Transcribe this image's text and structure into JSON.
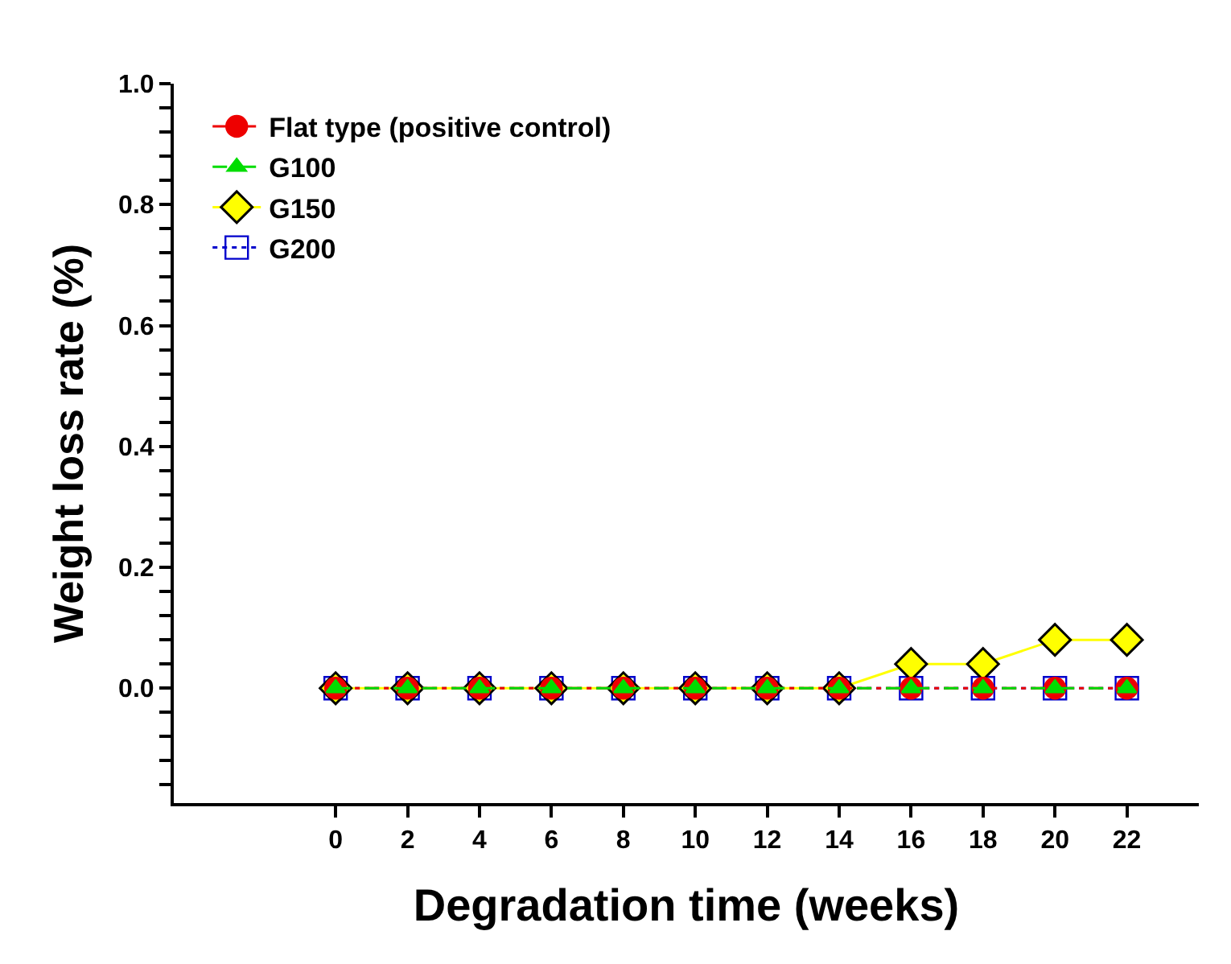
{
  "chart_data": {
    "type": "line",
    "xlabel": "Degradation time (weeks)",
    "ylabel": "Weight loss rate (%)",
    "x": [
      0,
      2,
      4,
      6,
      8,
      10,
      12,
      14,
      16,
      18,
      20,
      22
    ],
    "series": [
      {
        "name": "Flat type (positive control)",
        "color": "#ee0000",
        "marker": "circle",
        "line_style": "dashdot",
        "values": [
          0,
          0,
          0,
          0,
          0,
          0,
          0,
          0,
          0,
          0,
          0,
          0
        ]
      },
      {
        "name": "G100",
        "color": "#00dd00",
        "marker": "triangle",
        "line_style": "dashed",
        "values": [
          0,
          0,
          0,
          0,
          0,
          0,
          0,
          0,
          0,
          0,
          0,
          0
        ]
      },
      {
        "name": "G150",
        "color": "#ffff00",
        "marker": "diamond",
        "line_style": "solid",
        "values": [
          0,
          0,
          0,
          0,
          0,
          0,
          0,
          0,
          0.04,
          0.04,
          0.08,
          0.08
        ]
      },
      {
        "name": "G200",
        "color": "#0000cc",
        "marker": "square-open",
        "line_style": "dotted",
        "values": [
          0,
          0,
          0,
          0,
          0,
          0,
          0,
          0,
          0,
          0,
          0,
          0
        ]
      }
    ],
    "xlim": [
      -4.5,
      24
    ],
    "xticks": [
      0,
      2,
      4,
      6,
      8,
      10,
      12,
      14,
      16,
      18,
      20,
      22
    ],
    "ylim": [
      -0.19,
      1.0
    ],
    "yticks": [
      {
        "value": -0.16,
        "label": null
      },
      {
        "value": -0.12,
        "label": null
      },
      {
        "value": -0.08,
        "label": null
      },
      {
        "value": -0.04,
        "label": null
      },
      {
        "value": 0,
        "label": "0.0"
      },
      {
        "value": 0.04,
        "label": null
      },
      {
        "value": 0.08,
        "label": null
      },
      {
        "value": 0.12,
        "label": null
      },
      {
        "value": 0.16,
        "label": null
      },
      {
        "value": 0.2,
        "label": "0.2"
      },
      {
        "value": 0.24,
        "label": null
      },
      {
        "value": 0.28,
        "label": null
      },
      {
        "value": 0.32,
        "label": null
      },
      {
        "value": 0.36,
        "label": null
      },
      {
        "value": 0.4,
        "label": "0.4"
      },
      {
        "value": 0.44,
        "label": null
      },
      {
        "value": 0.48,
        "label": null
      },
      {
        "value": 0.52,
        "label": null
      },
      {
        "value": 0.56,
        "label": null
      },
      {
        "value": 0.6,
        "label": "0.6"
      },
      {
        "value": 0.64,
        "label": null
      },
      {
        "value": 0.68,
        "label": null
      },
      {
        "value": 0.72,
        "label": null
      },
      {
        "value": 0.76,
        "label": null
      },
      {
        "value": 0.8,
        "label": "0.8"
      },
      {
        "value": 0.84,
        "label": null
      },
      {
        "value": 0.88,
        "label": null
      },
      {
        "value": 0.92,
        "label": null
      },
      {
        "value": 0.96,
        "label": null
      },
      {
        "value": 1.0,
        "label": "1.0"
      }
    ],
    "grid": false,
    "legend": "top left"
  }
}
